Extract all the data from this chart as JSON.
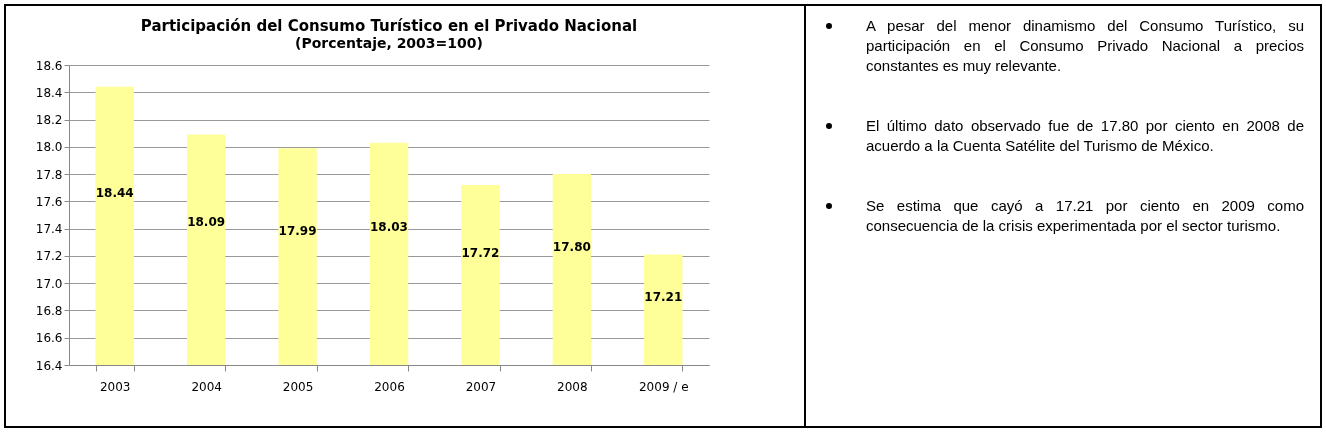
{
  "chart_data": {
    "type": "bar",
    "title": "Participación del Consumo Turístico en el Privado Nacional",
    "subtitle": "(Porcentaje, 2003=100)",
    "categories": [
      "2003",
      "2004",
      "2005",
      "2006",
      "2007",
      "2008",
      "2009 / e"
    ],
    "values": [
      18.44,
      18.09,
      17.99,
      18.03,
      17.72,
      17.8,
      17.21
    ],
    "color": "#ffff99",
    "ylim": [
      16.4,
      18.6
    ],
    "yticks": [
      {
        "value": 16.4,
        "label": "16.4"
      },
      {
        "value": 16.6,
        "label": "16.6"
      },
      {
        "value": 16.8,
        "label": "16.8"
      },
      {
        "value": 17.0,
        "label": "17.0"
      },
      {
        "value": 17.2,
        "label": "17.2"
      },
      {
        "value": 17.4,
        "label": "17.4"
      },
      {
        "value": 17.6,
        "label": "17.6"
      },
      {
        "value": 17.8,
        "label": "17.8"
      },
      {
        "value": 18.0,
        "label": "18.0"
      },
      {
        "value": 18.2,
        "label": "18.2"
      },
      {
        "value": 18.4,
        "label": "18.4"
      },
      {
        "value": 18.6,
        "label": "18.6"
      }
    ],
    "grid": "y",
    "data_labels": true,
    "value_labels": [
      "18.44",
      "18.09",
      "17.99",
      "18.03",
      "17.72",
      "17.80",
      "17.21"
    ],
    "annotations": [
      "A pesar del menor dinamismo del Consumo Turístico, su participación en el Consumo Privado Nacional a precios constantes es muy relevante.",
      "El último dato observado fue de 17.80 por ciento en 2008 de acuerdo a la Cuenta Satélite del Turismo de México.",
      "Se estima que cayó a 17.21 por ciento en 2009 como consecuencia de la crisis experimentada por el sector turismo."
    ]
  }
}
